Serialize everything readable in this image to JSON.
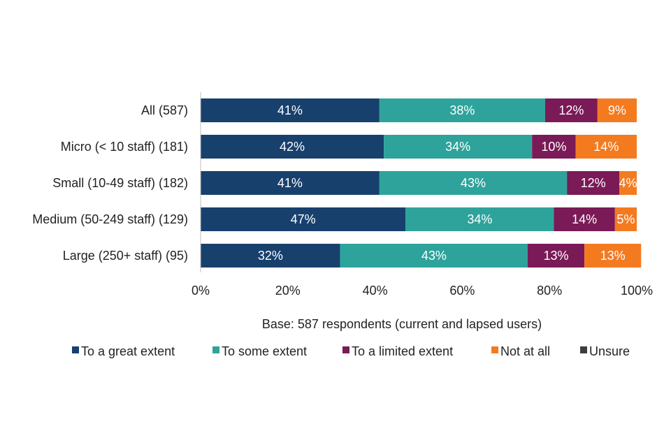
{
  "chart_data": {
    "type": "bar",
    "orientation": "horizontal",
    "stacked": true,
    "categories": [
      "All (587)",
      "Micro (< 10 staff) (181)",
      "Small (10-49 staff) (182)",
      "Medium (50-249 staff) (129)",
      "Large (250+ staff) (95)"
    ],
    "series": [
      {
        "name": "To a great extent",
        "color": "#17406d",
        "values": [
          41,
          42,
          41,
          47,
          32
        ],
        "labels": [
          "41%",
          "42%",
          "41%",
          "47%",
          "32%"
        ]
      },
      {
        "name": "To some extent",
        "color": "#2ea39b",
        "values": [
          38,
          34,
          43,
          34,
          43
        ],
        "labels": [
          "38%",
          "34%",
          "43%",
          "34%",
          "43%"
        ]
      },
      {
        "name": "To a limited extent",
        "color": "#7a1a57",
        "values": [
          12,
          10,
          12,
          14,
          13
        ],
        "labels": [
          "12%",
          "10%",
          "12%",
          "14%",
          "13%"
        ]
      },
      {
        "name": "Not at all",
        "color": "#f47a20",
        "values": [
          9,
          14,
          4,
          5,
          13
        ],
        "labels": [
          "9%",
          "14%",
          "4%",
          "5%",
          "13%"
        ]
      },
      {
        "name": "Unsure",
        "color": "#3d3d3d",
        "values": [
          0,
          0,
          0,
          0,
          0
        ],
        "labels": [
          "",
          "",
          "",
          "",
          ""
        ]
      }
    ],
    "xlim": [
      0,
      100
    ],
    "x_ticks": [
      "0%",
      "20%",
      "40%",
      "60%",
      "80%",
      "100%"
    ],
    "xlabel": "Base: 587 respondents (current and lapsed users)",
    "title": "",
    "legend_position": "bottom",
    "grid": false
  }
}
